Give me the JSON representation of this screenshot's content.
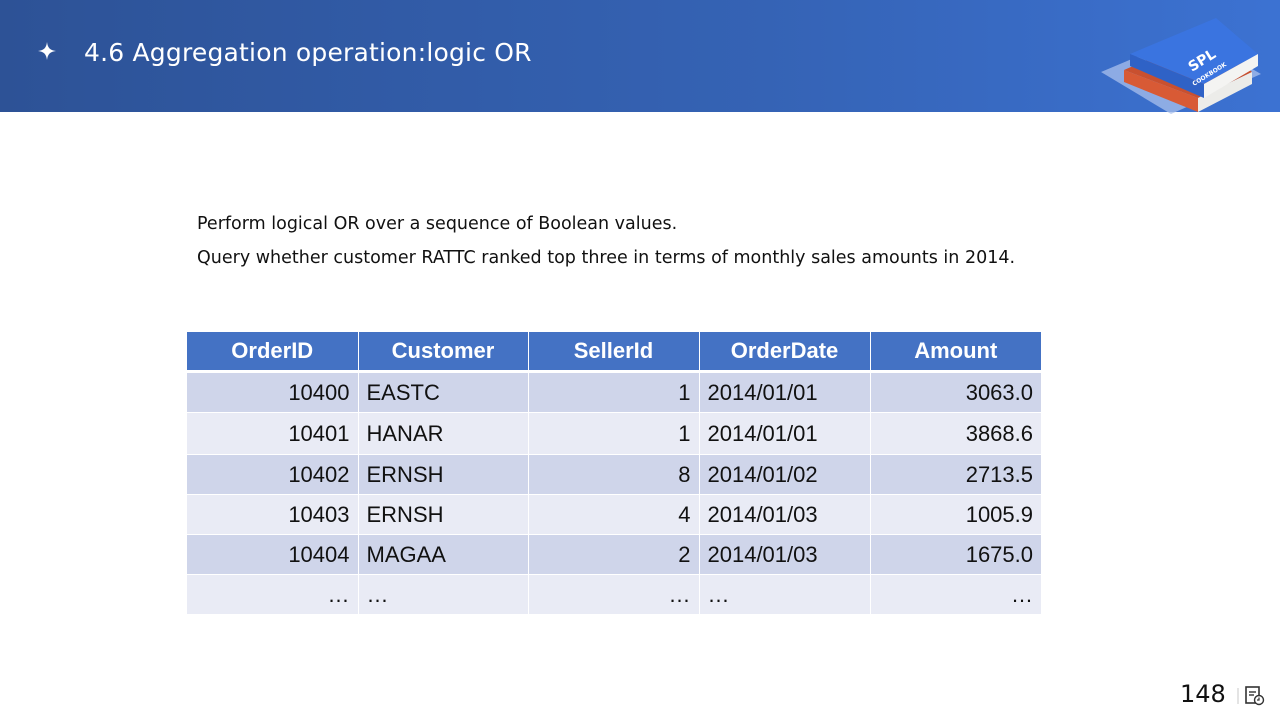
{
  "slide": {
    "title": "4.6 Aggregation operation:logic OR",
    "logo_text": "SPL",
    "logo_subtext": "COOKBOOK",
    "description": [
      "Perform logical OR over a sequence of Boolean values.",
      "Query whether customer RATTC ranked top three in terms of monthly sales amounts in 2014."
    ],
    "page_number": "148"
  },
  "table": {
    "columns": [
      "OrderID",
      "Customer",
      "SellerId",
      "OrderDate",
      "Amount"
    ],
    "rows": [
      [
        "10400",
        "EASTC",
        "1",
        "2014/01/01",
        "3063.0"
      ],
      [
        "10401",
        "HANAR",
        "1",
        "2014/01/01",
        "3868.6"
      ],
      [
        "10402",
        "ERNSH",
        "8",
        "2014/01/02",
        "2713.5"
      ],
      [
        "10403",
        "ERNSH",
        "4",
        "2014/01/03",
        "1005.9"
      ],
      [
        "10404",
        "MAGAA",
        "2",
        "2014/01/03",
        "1675.0"
      ],
      [
        "…",
        "…",
        "…",
        "…",
        "…"
      ]
    ]
  },
  "colors": {
    "header_bg": "#3563b5",
    "table_header": "#4472c4",
    "row_odd": "#cfd5ea",
    "row_even": "#e9ebf5"
  },
  "icons": {
    "title_bullet": "sparkle-star-icon",
    "logo": "book-stack-logo",
    "bottom_right": "slide-notes-icon"
  }
}
